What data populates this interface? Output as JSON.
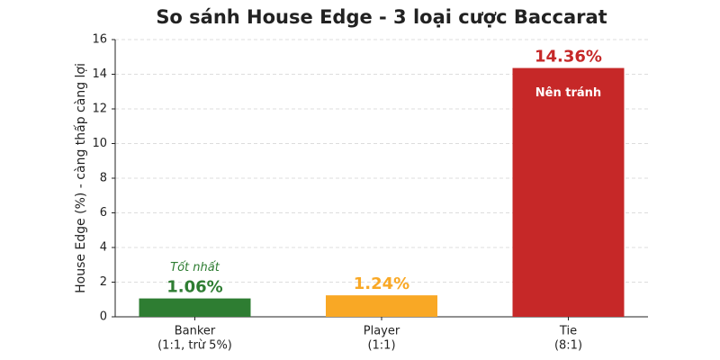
{
  "chart_data": {
    "type": "bar",
    "title": "So sánh House Edge - 3 loại cược Baccarat",
    "ylabel": "House Edge (%) - càng thấp càng lợi",
    "categories": [
      "Banker",
      "Player",
      "Tie"
    ],
    "category_notes": [
      "(1:1, trừ 5%)",
      "(1:1)",
      "(8:1)"
    ],
    "values": [
      1.06,
      1.24,
      14.36
    ],
    "value_labels": [
      "1.06%",
      "1.24%",
      "14.36%"
    ],
    "colors": [
      "#2e7d32",
      "#f9a825",
      "#c62828"
    ],
    "bar_notes": [
      "Tốt nhất",
      null,
      "Nên tránh"
    ],
    "ylim": [
      0,
      16
    ],
    "yticks": [
      0,
      2,
      4,
      6,
      8,
      10,
      12,
      14,
      16
    ],
    "grid": true
  }
}
